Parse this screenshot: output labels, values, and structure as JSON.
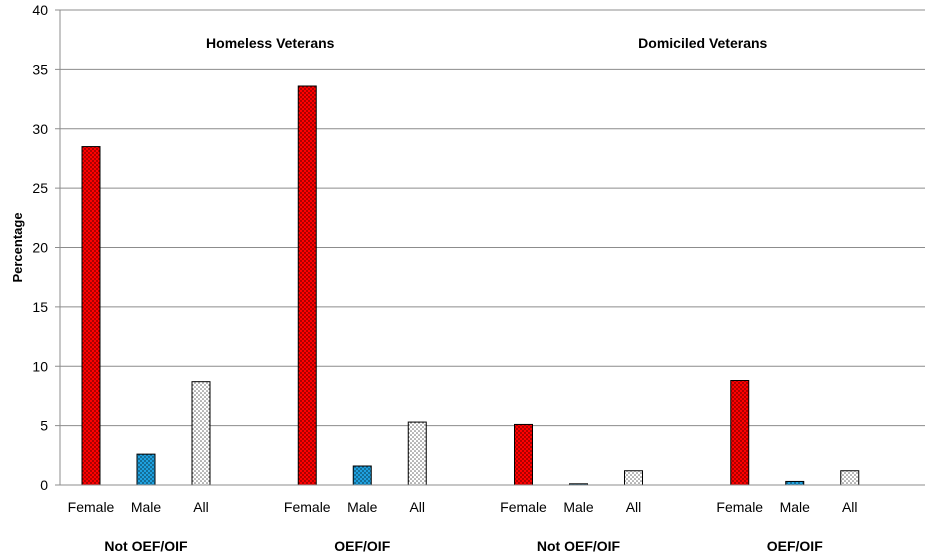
{
  "chart_data": {
    "type": "bar",
    "ylabel": "Percentage",
    "ylim": [
      0,
      40
    ],
    "yticks": [
      0,
      5,
      10,
      15,
      20,
      25,
      30,
      35,
      40
    ],
    "grid": true,
    "panels": [
      {
        "title": "Homeless Veterans",
        "groups": [
          {
            "label": "Not OEF/OIF",
            "bars": [
              {
                "category": "Female",
                "value": 28.5,
                "color": "#ff0000",
                "pattern": "dots-dark"
              },
              {
                "category": "Male",
                "value": 2.6,
                "color": "#1ea1e0",
                "pattern": "dots-dark"
              },
              {
                "category": "All",
                "value": 8.7,
                "color": "#ffffff",
                "pattern": "dots-light"
              }
            ]
          },
          {
            "label": "OEF/OIF",
            "bars": [
              {
                "category": "Female",
                "value": 33.6,
                "color": "#ff0000",
                "pattern": "dots-dark"
              },
              {
                "category": "Male",
                "value": 1.6,
                "color": "#1ea1e0",
                "pattern": "dots-dark"
              },
              {
                "category": "All",
                "value": 5.3,
                "color": "#ffffff",
                "pattern": "dots-light"
              }
            ]
          }
        ]
      },
      {
        "title": "Domiciled Veterans",
        "groups": [
          {
            "label": "Not OEF/OIF",
            "bars": [
              {
                "category": "Female",
                "value": 5.1,
                "color": "#ff0000",
                "pattern": "dots-dark"
              },
              {
                "category": "Male",
                "value": 0.1,
                "color": "#1ea1e0",
                "pattern": "dots-dark"
              },
              {
                "category": "All",
                "value": 1.2,
                "color": "#ffffff",
                "pattern": "dots-light"
              }
            ]
          },
          {
            "label": "OEF/OIF",
            "bars": [
              {
                "category": "Female",
                "value": 8.8,
                "color": "#ff0000",
                "pattern": "dots-dark"
              },
              {
                "category": "Male",
                "value": 0.3,
                "color": "#1ea1e0",
                "pattern": "dots-dark"
              },
              {
                "category": "All",
                "value": 1.2,
                "color": "#ffffff",
                "pattern": "dots-light"
              }
            ]
          }
        ]
      }
    ]
  }
}
